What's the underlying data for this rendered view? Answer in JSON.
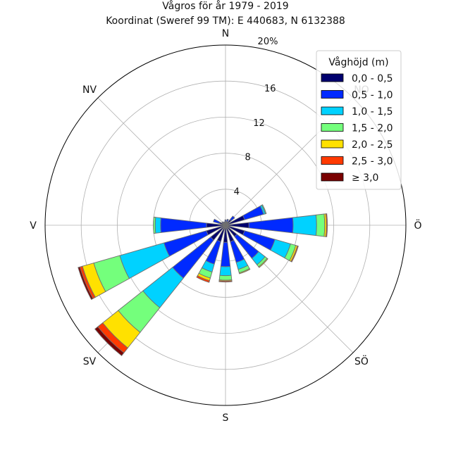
{
  "chart_data": {
    "type": "windrose",
    "title": "Vågros för år 1979 - 2019",
    "subtitle": "Koordinat (Sweref 99 TM): E 440683, N 6132388",
    "directions": [
      {
        "label": "N",
        "angle_deg": 0
      },
      {
        "label": "NO",
        "angle_deg": 45
      },
      {
        "label": "Ö",
        "angle_deg": 90
      },
      {
        "label": "SÖ",
        "angle_deg": 135
      },
      {
        "label": "S",
        "angle_deg": 180
      },
      {
        "label": "SV",
        "angle_deg": 225
      },
      {
        "label": "V",
        "angle_deg": 270
      },
      {
        "label": "NV",
        "angle_deg": 315
      }
    ],
    "radial_ticks": [
      4,
      8,
      12,
      16
    ],
    "radial_max_label": "20%",
    "rmax": 20,
    "legend": {
      "title": "Våghöjd (m)",
      "placement": "top-right",
      "entries": [
        "0,0 - 0,5",
        "0,5 - 1,0",
        "1,0 - 1,5",
        "1,5 - 2,0",
        "2,0 - 2,5",
        "2,5 - 3,0",
        "≥ 3,0"
      ]
    },
    "colors": [
      "#00006e",
      "#002aff",
      "#00d2ff",
      "#74ff7c",
      "#ffe100",
      "#ff3a00",
      "#7a0000"
    ],
    "sector_width_deg": 13,
    "sectors": [
      {
        "dir_deg": 0,
        "cumulative": [
          0.3,
          0.6
        ]
      },
      {
        "dir_deg": 22.5,
        "cumulative": [
          0.4,
          0.7
        ]
      },
      {
        "dir_deg": 45,
        "cumulative": [
          0.8,
          1.3
        ]
      },
      {
        "dir_deg": 67.5,
        "cumulative": [
          2.2,
          4.4,
          4.6,
          4.7
        ]
      },
      {
        "dir_deg": 90,
        "cumulative": [
          2.6,
          7.5,
          10.1,
          11.0,
          11.2,
          11.3
        ]
      },
      {
        "dir_deg": 112.5,
        "cumulative": [
          2.2,
          5.7,
          7.5,
          8.1,
          8.3,
          8.4
        ]
      },
      {
        "dir_deg": 135,
        "cumulative": [
          1.6,
          4.7,
          5.6,
          5.9,
          6.0
        ]
      },
      {
        "dir_deg": 157.5,
        "cumulative": [
          1.9,
          4.3,
          5.1,
          5.5,
          5.6
        ]
      },
      {
        "dir_deg": 180,
        "cumulative": [
          1.9,
          4.6,
          5.6,
          6.1,
          6.2,
          6.3
        ]
      },
      {
        "dir_deg": 202.5,
        "cumulative": [
          1.9,
          4.5,
          5.4,
          6.1,
          6.4,
          6.6
        ]
      },
      {
        "dir_deg": 225,
        "cumulative": [
          2.1,
          7.5,
          11.7,
          15.2,
          17.4,
          18.1,
          18.5
        ]
      },
      {
        "dir_deg": 247.5,
        "cumulative": [
          2.2,
          7.1,
          12.2,
          15.2,
          16.5,
          16.8,
          17.0
        ]
      },
      {
        "dir_deg": 270,
        "cumulative": [
          2.1,
          7.2,
          7.8,
          8.0
        ]
      },
      {
        "dir_deg": 292.5,
        "cumulative": [
          0.7,
          1.4
        ]
      },
      {
        "dir_deg": 315,
        "cumulative": [
          0.3,
          0.5
        ]
      },
      {
        "dir_deg": 337.5,
        "cumulative": [
          0.3,
          0.4
        ]
      }
    ]
  }
}
